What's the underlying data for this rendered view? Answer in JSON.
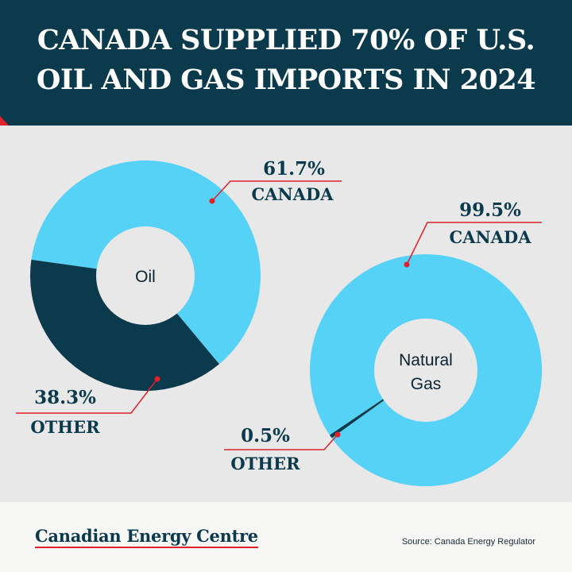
{
  "header": {
    "title_line1": "CANADA SUPPLIED 70% OF U.S.",
    "title_line2": "OIL AND GAS IMPORTS IN 2024"
  },
  "footer": {
    "brand": "Canadian Energy Centre",
    "source": "Source: Canada Energy Regulator"
  },
  "colors": {
    "canada": "#55d2f6",
    "other": "#0b3a4d",
    "accent": "#e0202a",
    "panel": "#e8e8e8"
  },
  "chart_data": [
    {
      "type": "pie",
      "center_label": "Oil",
      "slices": [
        {
          "label": "CANADA",
          "value": 61.7,
          "display": "61.7%"
        },
        {
          "label": "OTHER",
          "value": 38.3,
          "display": "38.3%"
        }
      ]
    },
    {
      "type": "pie",
      "center_label": [
        "Natural",
        "Gas"
      ],
      "slices": [
        {
          "label": "CANADA",
          "value": 99.5,
          "display": "99.5%"
        },
        {
          "label": "OTHER",
          "value": 0.5,
          "display": "0.5%"
        }
      ]
    }
  ]
}
